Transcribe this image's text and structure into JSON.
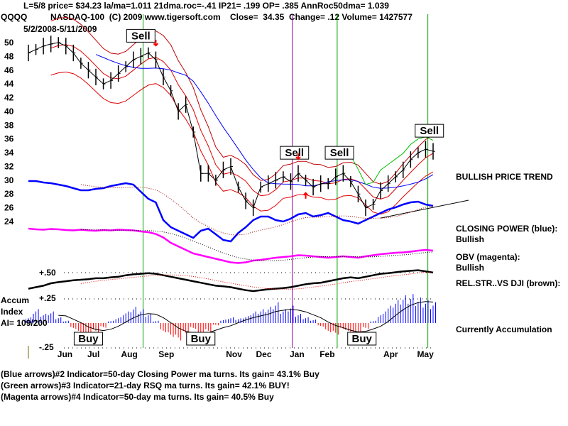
{
  "header": {
    "line1": "L=5/8  price= $34.23  la/ma=1.011 21dma.roc=-.41 IP21= .199 OP= .385 AnnRoc50dma= 1.039",
    "symbol": "QQQQ",
    "line2": "NASDAQ-100  (C) 2009 www.tigersoft.com    Close=  34.35  Change= .12 Volume= 1427577",
    "range": "5/2/2008-5/11/2009"
  },
  "right_labels": {
    "trend": "BULLISH PRICE TREND",
    "cp_title": "CLOSING POWER (blue):",
    "cp_value": "Bullish",
    "obv_title": "OBV (magenta):",
    "obv_value": "Bullish",
    "rs_title": "REL.STR..VS DJI (brown):",
    "accum_status": "Currently Accumulation"
  },
  "accum_labels": {
    "line1": "Accum",
    "line2": "Index",
    "line3": "AI= 109/200",
    "plus50": "+.50",
    "plus25": "+.25",
    "minus25": "-.25"
  },
  "footer": [
    "(Blue arrows)#2 Indicator=50-day Closing Power ma turns. Its gain= 43.1% Buy",
    "(Green arrows)#3 Indicator=21-day RSQ ma turns. Its gain= 42.1% BUY!",
    "(Magenta arrows)#4 Indicator=50-day ma turns. Its gain= 40.5% Buy"
  ],
  "chart_data": {
    "type": "line",
    "title": "QQQQ NASDAQ-100",
    "ylim": [
      24,
      50
    ],
    "yticks": [
      24,
      26,
      28,
      30,
      32,
      34,
      36,
      38,
      40,
      42,
      44,
      46,
      48,
      50
    ],
    "xticks": [
      {
        "label": "Jun",
        "week": 5
      },
      {
        "label": "Jul",
        "week": 9
      },
      {
        "label": "Aug",
        "week": 13.5
      },
      {
        "label": "Sep",
        "week": 18.5
      },
      {
        "label": "Nov",
        "week": 27.5
      },
      {
        "label": "Dec",
        "week": 31.5
      },
      {
        "label": "Jan",
        "week": 36
      },
      {
        "label": "Feb",
        "week": 40
      },
      {
        "label": "Apr",
        "week": 48.5
      },
      {
        "label": "May",
        "week": 53
      }
    ],
    "price_weekly": [
      48.5,
      49,
      49.5,
      49.8,
      50,
      49.5,
      48.5,
      47,
      46,
      45,
      44,
      44.5,
      45.5,
      46.5,
      47.5,
      48,
      48.5,
      47.5,
      45,
      43,
      40,
      41,
      37,
      31,
      31,
      30,
      31.5,
      32,
      29,
      27,
      26,
      29,
      29.5,
      30,
      30.5,
      29.8,
      31,
      30,
      29,
      29.5,
      29.5,
      30.5,
      31,
      29.8,
      28,
      26,
      26.5,
      28.5,
      29.5,
      30.5,
      31.5,
      33,
      34,
      34.5,
      34.2
    ],
    "closing_power": [
      95,
      95,
      93,
      92,
      90,
      88,
      85,
      82,
      82,
      84,
      85,
      88,
      90,
      92,
      90,
      80,
      70,
      65,
      40,
      30,
      25,
      20,
      15,
      25,
      28,
      20,
      12,
      10,
      22,
      30,
      40,
      45,
      45,
      40,
      38,
      42,
      48,
      50,
      45,
      47,
      50,
      45,
      40,
      38,
      35,
      40,
      45,
      50,
      55,
      58,
      62,
      65,
      66,
      62,
      60
    ],
    "obv": [
      100,
      98,
      97,
      99,
      98,
      96,
      95,
      97,
      95,
      94,
      96,
      95,
      97,
      96,
      95,
      92,
      90,
      85,
      75,
      60,
      50,
      40,
      30,
      25,
      20,
      15,
      10,
      5,
      3,
      5,
      10,
      12,
      15,
      18,
      20,
      22,
      25,
      24,
      22,
      20,
      18,
      20,
      22,
      20,
      18,
      22,
      25,
      28,
      30,
      32,
      33,
      35,
      38,
      40,
      38
    ],
    "rel_str": [
      20,
      25,
      30,
      38,
      42,
      45,
      48,
      50,
      52,
      55,
      55,
      58,
      60,
      65,
      68,
      70,
      72,
      70,
      65,
      60,
      55,
      50,
      45,
      40,
      35,
      30,
      28,
      25,
      20,
      15,
      12,
      15,
      18,
      20,
      22,
      25,
      30,
      35,
      38,
      40,
      45,
      50,
      55,
      58,
      55,
      60,
      65,
      70,
      72,
      75,
      78,
      80,
      82,
      78,
      74
    ],
    "accum_index": [
      0.05,
      0.12,
      0.08,
      0.1,
      0.05,
      0.02,
      -0.05,
      -0.1,
      -0.12,
      -0.08,
      -0.04,
      0.02,
      0.05,
      0.1,
      0.14,
      0.12,
      0.08,
      0.02,
      -0.08,
      -0.12,
      -0.15,
      -0.1,
      -0.05,
      -0.12,
      -0.08,
      -0.02,
      0.03,
      0.05,
      0.04,
      0.06,
      0.1,
      0.12,
      0.14,
      0.18,
      0.12,
      0.15,
      0.08,
      0.05,
      0.03,
      -0.03,
      -0.08,
      -0.1,
      -0.06,
      -0.1,
      -0.12,
      -0.05,
      0.02,
      0.08,
      0.15,
      0.2,
      0.24,
      0.25,
      0.22,
      0.2,
      0.18
    ],
    "signals": [
      {
        "type": "Sell",
        "week": 15
      },
      {
        "type": "Sell",
        "week": 35.5
      },
      {
        "type": "Sell",
        "week": 41.5
      },
      {
        "type": "Sell",
        "week": 53.5
      },
      {
        "type": "Buy",
        "week": 8
      },
      {
        "type": "Buy",
        "week": 23
      },
      {
        "type": "Buy",
        "week": 44.5
      }
    ],
    "vertical_lines_weeks": [
      15.3,
      35.2,
      41.2,
      53.3
    ]
  }
}
